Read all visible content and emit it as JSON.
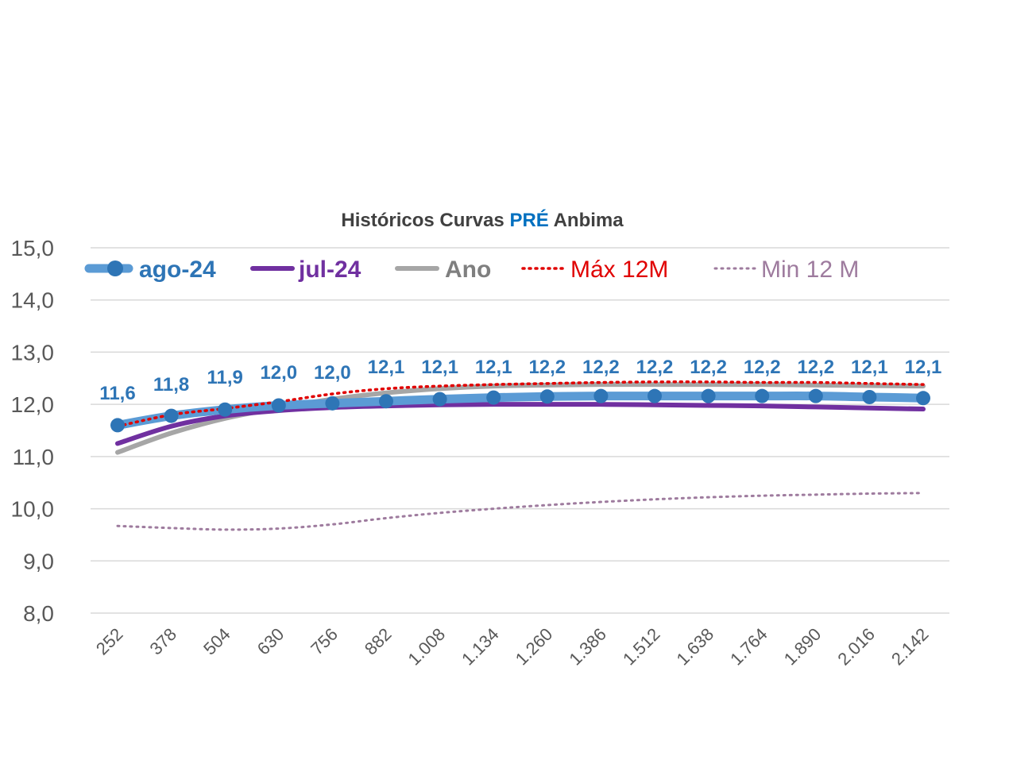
{
  "colors": {
    "ago": "#5B9BD5",
    "ago_marker": "#2E75B6",
    "jul": "#7030A0",
    "ano": "#A6A6A6",
    "max": "#E00000",
    "min": "#9E7B9E",
    "title_accent": "#0070C0",
    "grid": "#D9D9D9"
  },
  "chart_data": {
    "type": "line",
    "title_parts": [
      "Históricos Curvas ",
      "PRÉ",
      " Anbima"
    ],
    "ylim": [
      8,
      15
    ],
    "y_ticks": [
      "8,0",
      "9,0",
      "10,0",
      "11,0",
      "12,0",
      "13,0",
      "14,0",
      "15,0"
    ],
    "categories": [
      "252",
      "378",
      "504",
      "630",
      "756",
      "882",
      "1.008",
      "1.134",
      "1.260",
      "1.386",
      "1.512",
      "1.638",
      "1.764",
      "1.890",
      "2.016",
      "2.142"
    ],
    "legend_position": "top",
    "grid": true,
    "series": [
      {
        "name": "ago-24",
        "key": "ago",
        "style": "thick-marker",
        "values": [
          11.6,
          11.78,
          11.9,
          11.98,
          12.02,
          12.06,
          12.1,
          12.13,
          12.15,
          12.16,
          12.16,
          12.16,
          12.16,
          12.16,
          12.14,
          12.12
        ],
        "labels": [
          "11,6",
          "11,8",
          "11,9",
          "12,0",
          "12,0",
          "12,1",
          "12,1",
          "12,1",
          "12,2",
          "12,2",
          "12,2",
          "12,2",
          "12,2",
          "12,2",
          "12,1",
          "12,1"
        ]
      },
      {
        "name": "jul-24",
        "key": "jul",
        "style": "solid",
        "values": [
          11.25,
          11.58,
          11.78,
          11.88,
          11.94,
          11.97,
          11.99,
          12.0,
          12.0,
          12.0,
          11.99,
          11.98,
          11.97,
          11.95,
          11.93,
          11.91
        ],
        "labels": []
      },
      {
        "name": "Ano",
        "key": "ano",
        "style": "solid",
        "values": [
          11.08,
          11.45,
          11.73,
          11.93,
          12.1,
          12.22,
          12.3,
          12.35,
          12.37,
          12.38,
          12.38,
          12.38,
          12.38,
          12.37,
          12.36,
          12.35
        ],
        "labels": []
      },
      {
        "name": "Máx 12M",
        "key": "max",
        "style": "dotted",
        "values": [
          11.58,
          11.8,
          11.92,
          12.05,
          12.2,
          12.3,
          12.35,
          12.38,
          12.4,
          12.42,
          12.43,
          12.43,
          12.42,
          12.42,
          12.4,
          12.38
        ],
        "labels": []
      },
      {
        "name": "Min 12 M",
        "key": "min",
        "style": "dotted-thin",
        "values": [
          9.67,
          9.63,
          9.6,
          9.62,
          9.7,
          9.82,
          9.92,
          10.0,
          10.07,
          10.13,
          10.18,
          10.22,
          10.25,
          10.27,
          10.29,
          10.3
        ],
        "labels": []
      }
    ]
  }
}
